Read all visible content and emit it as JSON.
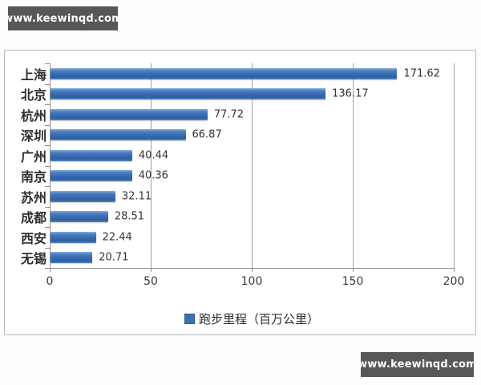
{
  "watermark": {
    "text": "www.keewinqd.com"
  },
  "colors": {
    "bar": "#3a6db4",
    "bar_light": "#86aede",
    "bar_dark": "#2d5f9f",
    "legend_swatch": "#3c71b1",
    "legend_swatch_border": "#2c5a94",
    "axis": "#8f8f8f",
    "gridline": "#a0a0a0",
    "text": "#333333",
    "frame_border": "#b9b9b9",
    "watermark_bg": "#565758",
    "watermark_text": "#ffffff"
  },
  "chart_data": {
    "type": "bar",
    "orientation": "horizontal",
    "title": "",
    "categories": [
      "上海",
      "北京",
      "杭州",
      "深圳",
      "广州",
      "南京",
      "苏州",
      "成都",
      "西安",
      "无锡"
    ],
    "values": [
      171.62,
      136.17,
      77.72,
      66.87,
      40.44,
      40.36,
      32.11,
      28.51,
      22.44,
      20.71
    ],
    "value_labels": [
      "171.62",
      "136.17",
      "77.72",
      "66.87",
      "40.44",
      "40.36",
      "32.11",
      "28.51",
      "22.44",
      "20.71"
    ],
    "x_ticks": [
      0,
      50,
      100,
      150,
      200
    ],
    "x_tick_labels": [
      "0",
      "50",
      "100",
      "150",
      "200"
    ],
    "xlim": [
      0,
      200
    ],
    "grid": true,
    "data_labels": true,
    "legend": "跑步里程（百万公里）",
    "legend_position": "bottom"
  }
}
